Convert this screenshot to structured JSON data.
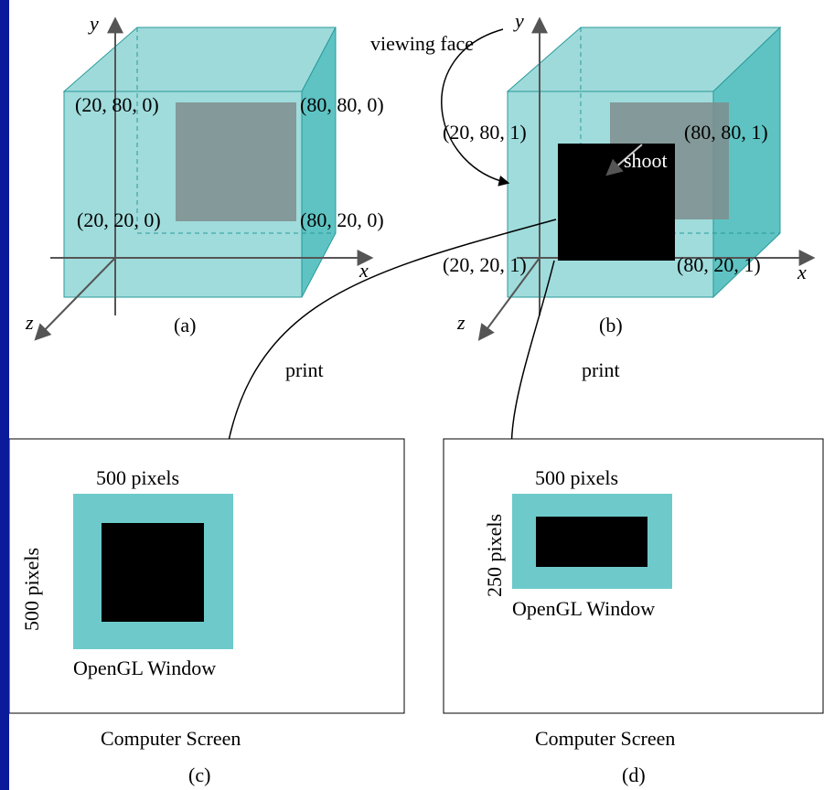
{
  "panel_a": {
    "caption": "(a)",
    "axis_x": "x",
    "axis_y": "y",
    "axis_z": "z",
    "pt_top_left": "(20, 80, 0)",
    "pt_top_right": "(80, 80, 0)",
    "pt_bottom_left": "(20, 20, 0)",
    "pt_bottom_right": "(80, 20, 0)"
  },
  "panel_b": {
    "caption": "(b)",
    "axis_x": "x",
    "axis_y": "y",
    "axis_z": "z",
    "viewing_face": "viewing face",
    "shoot": "shoot",
    "pt_top_left": "(20, 80, 1)",
    "pt_top_right": "(80, 80, 1)",
    "pt_bottom_left": "(20, 20, 1)",
    "pt_bottom_right": "(80, 20, 1)"
  },
  "arrows": {
    "print_left": "print",
    "print_right": "print"
  },
  "panel_c": {
    "caption": "(c)",
    "screen_label": "Computer Screen",
    "width_label": "500 pixels",
    "height_label": "500 pixels",
    "window_label": "OpenGL Window"
  },
  "panel_d": {
    "caption": "(d)",
    "screen_label": "Computer Screen",
    "width_label": "500 pixels",
    "height_label": "250 pixels",
    "window_label": "OpenGL Window"
  },
  "colors": {
    "slide_bg": "#0d1fa8",
    "cube_face": "#8fd6d6",
    "cube_side": "#5cc1c1",
    "gray_square": "#7f8d8d",
    "window_teal": "#6ecaca",
    "black": "#000000"
  }
}
